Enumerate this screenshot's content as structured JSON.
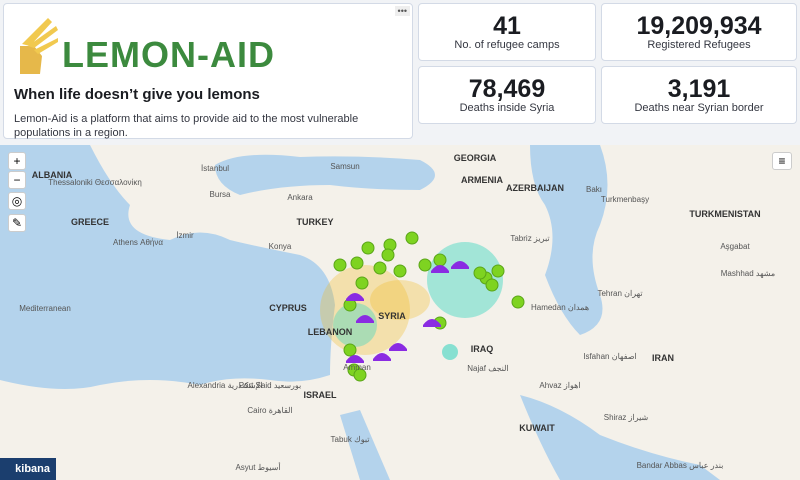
{
  "header": {
    "brand": "LEMON-AID",
    "title": "When life doesn’t give you lemons",
    "description": "Lemon-Aid is a platform that aims to provide aid to the most vulnerable populations in a region."
  },
  "metrics": [
    {
      "value": 41,
      "label": "No. of refugee camps"
    },
    {
      "value": "19,209,934",
      "label": "Registered Refugees"
    },
    {
      "value": "78,469",
      "label": "Deaths inside Syria"
    },
    {
      "value": "3,191",
      "label": "Deaths near Syrian border"
    }
  ],
  "map": {
    "labels": [
      "ALBANIA",
      "Thessaloniki Θεσσαλονίκη",
      "İstanbul",
      "Samsun",
      "GEORGIA",
      "ARMENIA",
      "AZERBAIJAN",
      "Bakı",
      "Bursa",
      "Ankara",
      "TURKEY",
      "GREECE",
      "İzmir",
      "Athens Αθήνα",
      "Turkmenbaşy",
      "TURKMENISTAN",
      "Konya",
      "Tabriz تبریز",
      "Aşgabat",
      "Mashhad مشهد",
      "Tehran تهران",
      "CYPRUS",
      "SYRIA",
      "LEBANON",
      "Hamedan همدان",
      "Mediterranean",
      "Amman",
      "IRAQ",
      "Isfahan اصفهان",
      "IRAN",
      "Alexandria الإسكندرية",
      "Port Said بورسعيد",
      "Najaf النجف",
      "Ahvaz اهواز",
      "ISRAEL",
      "Cairo القاهرة",
      "KUWAIT",
      "Shiraz شیراز",
      "Tabuk تبوك",
      "Asyut أسيوط",
      "Bandar Abbas بندر عباس"
    ]
  },
  "footer": {
    "badge": "kibana"
  }
}
